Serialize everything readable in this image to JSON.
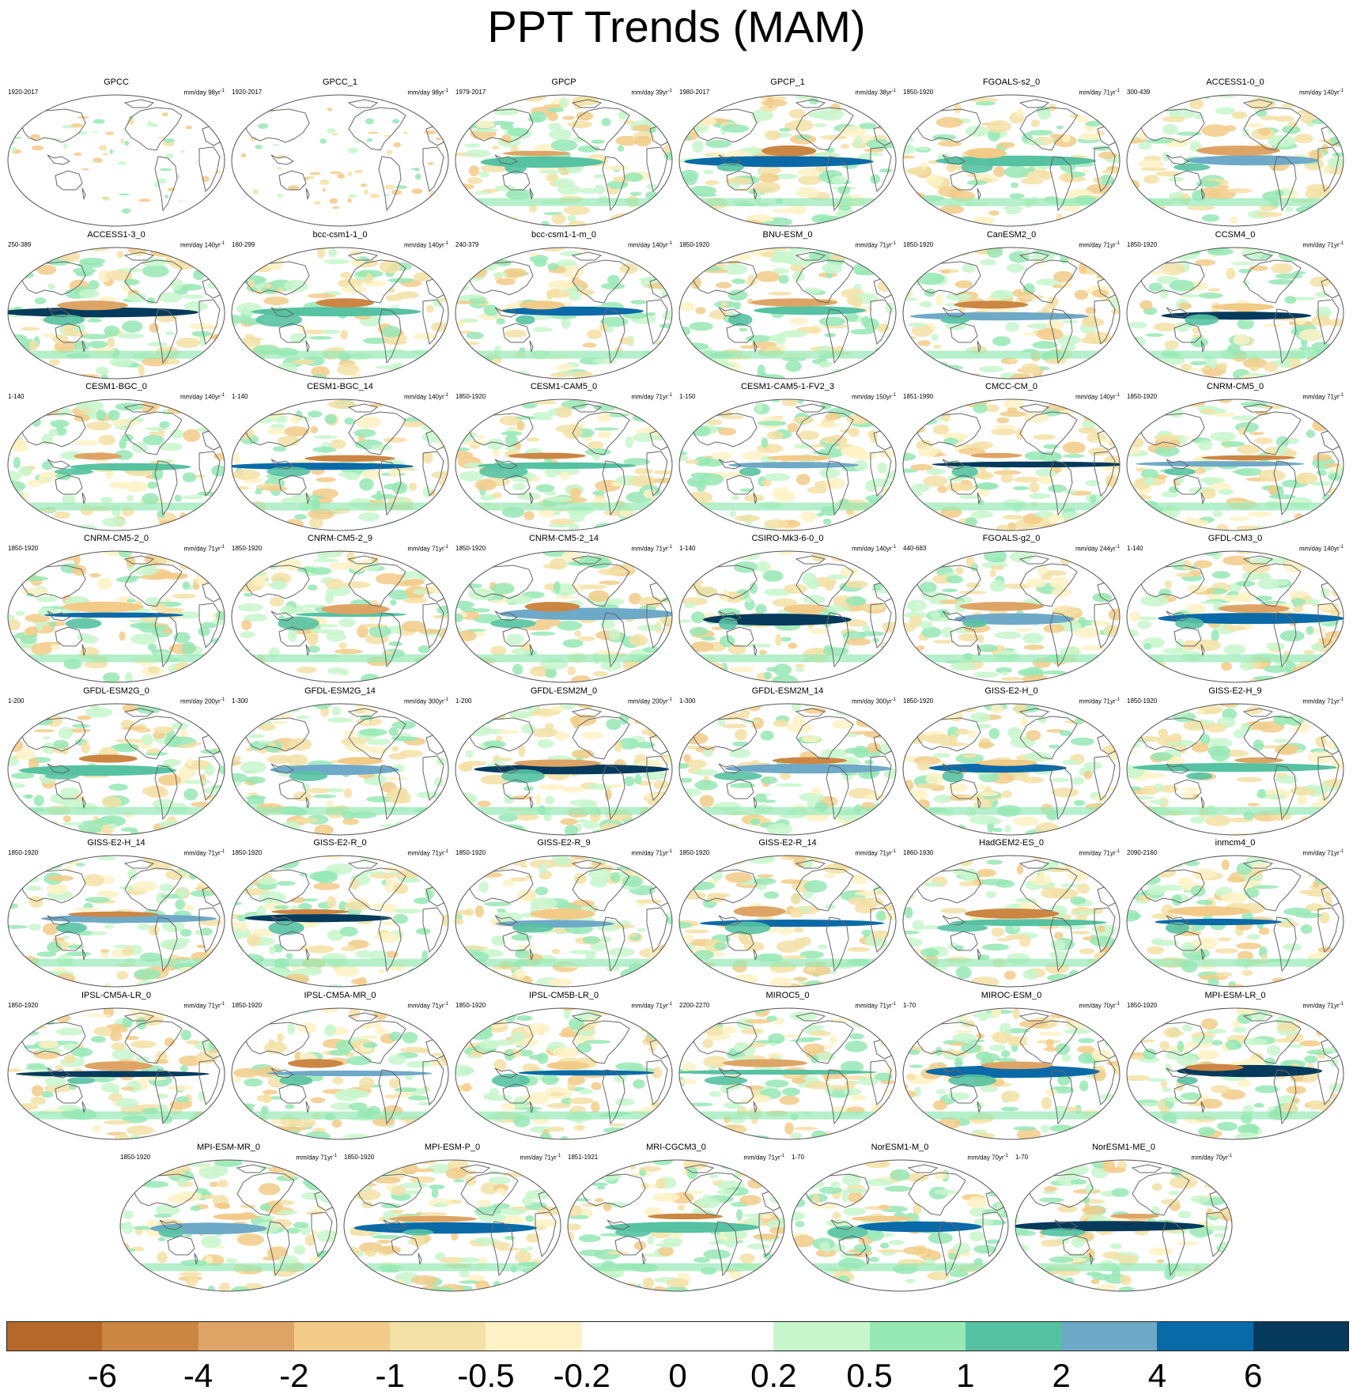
{
  "title": "PPT Trends (MAM)",
  "colorbar": {
    "colors": [
      "#b5682a",
      "#cc8644",
      "#dea466",
      "#f2cb88",
      "#f3e0a6",
      "#fdf2c6",
      "#ffffff",
      "#ffffff",
      "#c8f6cd",
      "#96e8b5",
      "#56c2a2",
      "#6fa9c8",
      "#0a6aa8",
      "#053a5c"
    ],
    "tick_labels": [
      "-6",
      "-4",
      "-2",
      "-1",
      "-0.5",
      "-0.2",
      "0",
      "0.2",
      "0.5",
      "1",
      "2",
      "4",
      "6"
    ]
  },
  "panels": [
    {
      "name": "GPCC",
      "years": "1920-2017",
      "units": "mm/day 98yr",
      "obs": true
    },
    {
      "name": "GPCC_1",
      "years": "1920-2017",
      "units": "mm/day 98yr",
      "obs": true
    },
    {
      "name": "GPCP",
      "years": "1979-2017",
      "units": "mm/day 39yr"
    },
    {
      "name": "GPCP_1",
      "years": "1980-2017",
      "units": "mm/day 38yr"
    },
    {
      "name": "FGOALS-s2_0",
      "years": "1850-1920",
      "units": "mm/day 71yr"
    },
    {
      "name": "ACCESS1-0_0",
      "years": "300-439",
      "units": "mm/day 140yr"
    },
    {
      "name": "ACCESS1-3_0",
      "years": "250-389",
      "units": "mm/day 140yr"
    },
    {
      "name": "bcc-csm1-1_0",
      "years": "160-299",
      "units": "mm/day 140yr"
    },
    {
      "name": "bcc-csm1-1-m_0",
      "years": "240-379",
      "units": "mm/day 140yr"
    },
    {
      "name": "BNU-ESM_0",
      "years": "1850-1920",
      "units": "mm/day 71yr"
    },
    {
      "name": "CanESM2_0",
      "years": "1850-1920",
      "units": "mm/day 71yr"
    },
    {
      "name": "CCSM4_0",
      "years": "1850-1920",
      "units": "mm/day 71yr"
    },
    {
      "name": "CESM1-BGC_0",
      "years": "1-140",
      "units": "mm/day 140yr"
    },
    {
      "name": "CESM1-BGC_14",
      "years": "1-140",
      "units": "mm/day 140yr"
    },
    {
      "name": "CESM1-CAM5_0",
      "years": "1850-1920",
      "units": "mm/day 71yr"
    },
    {
      "name": "CESM1-CAM5-1-FV2_3",
      "years": "1-150",
      "units": "mm/day 150yr"
    },
    {
      "name": "CMCC-CM_0",
      "years": "1851-1990",
      "units": "mm/day 140yr"
    },
    {
      "name": "CNRM-CM5_0",
      "years": "1850-1920",
      "units": "mm/day 71yr"
    },
    {
      "name": "CNRM-CM5-2_0",
      "years": "1850-1920",
      "units": "mm/day 71yr"
    },
    {
      "name": "CNRM-CM5-2_9",
      "years": "1850-1920",
      "units": "mm/day 71yr"
    },
    {
      "name": "CNRM-CM5-2_14",
      "years": "1850-1920",
      "units": "mm/day 71yr"
    },
    {
      "name": "CSIRO-Mk3-6-0_0",
      "years": "1-140",
      "units": "mm/day 140yr"
    },
    {
      "name": "FGOALS-g2_0",
      "years": "440-683",
      "units": "mm/day 244yr"
    },
    {
      "name": "GFDL-CM3_0",
      "years": "1-140",
      "units": "mm/day 140yr"
    },
    {
      "name": "GFDL-ESM2G_0",
      "years": "1-200",
      "units": "mm/day 200yr"
    },
    {
      "name": "GFDL-ESM2G_14",
      "years": "1-300",
      "units": "mm/day 300yr"
    },
    {
      "name": "GFDL-ESM2M_0",
      "years": "1-200",
      "units": "mm/day 200yr"
    },
    {
      "name": "GFDL-ESM2M_14",
      "years": "1-300",
      "units": "mm/day 300yr"
    },
    {
      "name": "GISS-E2-H_0",
      "years": "1850-1920",
      "units": "mm/day 71yr"
    },
    {
      "name": "GISS-E2-H_9",
      "years": "1850-1920",
      "units": "mm/day 71yr"
    },
    {
      "name": "GISS-E2-H_14",
      "years": "1850-1920",
      "units": "mm/day 71yr"
    },
    {
      "name": "GISS-E2-R_0",
      "years": "1850-1920",
      "units": "mm/day 71yr"
    },
    {
      "name": "GISS-E2-R_9",
      "years": "1850-1920",
      "units": "mm/day 71yr"
    },
    {
      "name": "GISS-E2-R_14",
      "years": "1850-1920",
      "units": "mm/day 71yr"
    },
    {
      "name": "HadGEM2-ES_0",
      "years": "1860-1930",
      "units": "mm/day 71yr"
    },
    {
      "name": "inmcm4_0",
      "years": "2090-2160",
      "units": "mm/day 71yr"
    },
    {
      "name": "IPSL-CM5A-LR_0",
      "years": "1850-1920",
      "units": "mm/day 71yr"
    },
    {
      "name": "IPSL-CM5A-MR_0",
      "years": "1850-1920",
      "units": "mm/day 71yr"
    },
    {
      "name": "IPSL-CM5B-LR_0",
      "years": "1850-1920",
      "units": "mm/day 71yr"
    },
    {
      "name": "MIROC5_0",
      "years": "2200-2270",
      "units": "mm/day 71yr"
    },
    {
      "name": "MIROC-ESM_0",
      "years": "1-70",
      "units": "mm/day 70yr"
    },
    {
      "name": "MPI-ESM-LR_0",
      "years": "1850-1920",
      "units": "mm/day 71yr"
    },
    {
      "name": "MPI-ESM-MR_0",
      "years": "1850-1920",
      "units": "mm/day 71yr"
    },
    {
      "name": "MPI-ESM-P_0",
      "years": "1850-1920",
      "units": "mm/day 71yr"
    },
    {
      "name": "MRI-CGCM3_0",
      "years": "1851-1921",
      "units": "mm/day 71yr"
    },
    {
      "name": "NorESM1-M_0",
      "years": "1-70",
      "units": "mm/day 70yr"
    },
    {
      "name": "NorESM1-ME_0",
      "years": "1-70",
      "units": "mm/day 70yr"
    }
  ]
}
